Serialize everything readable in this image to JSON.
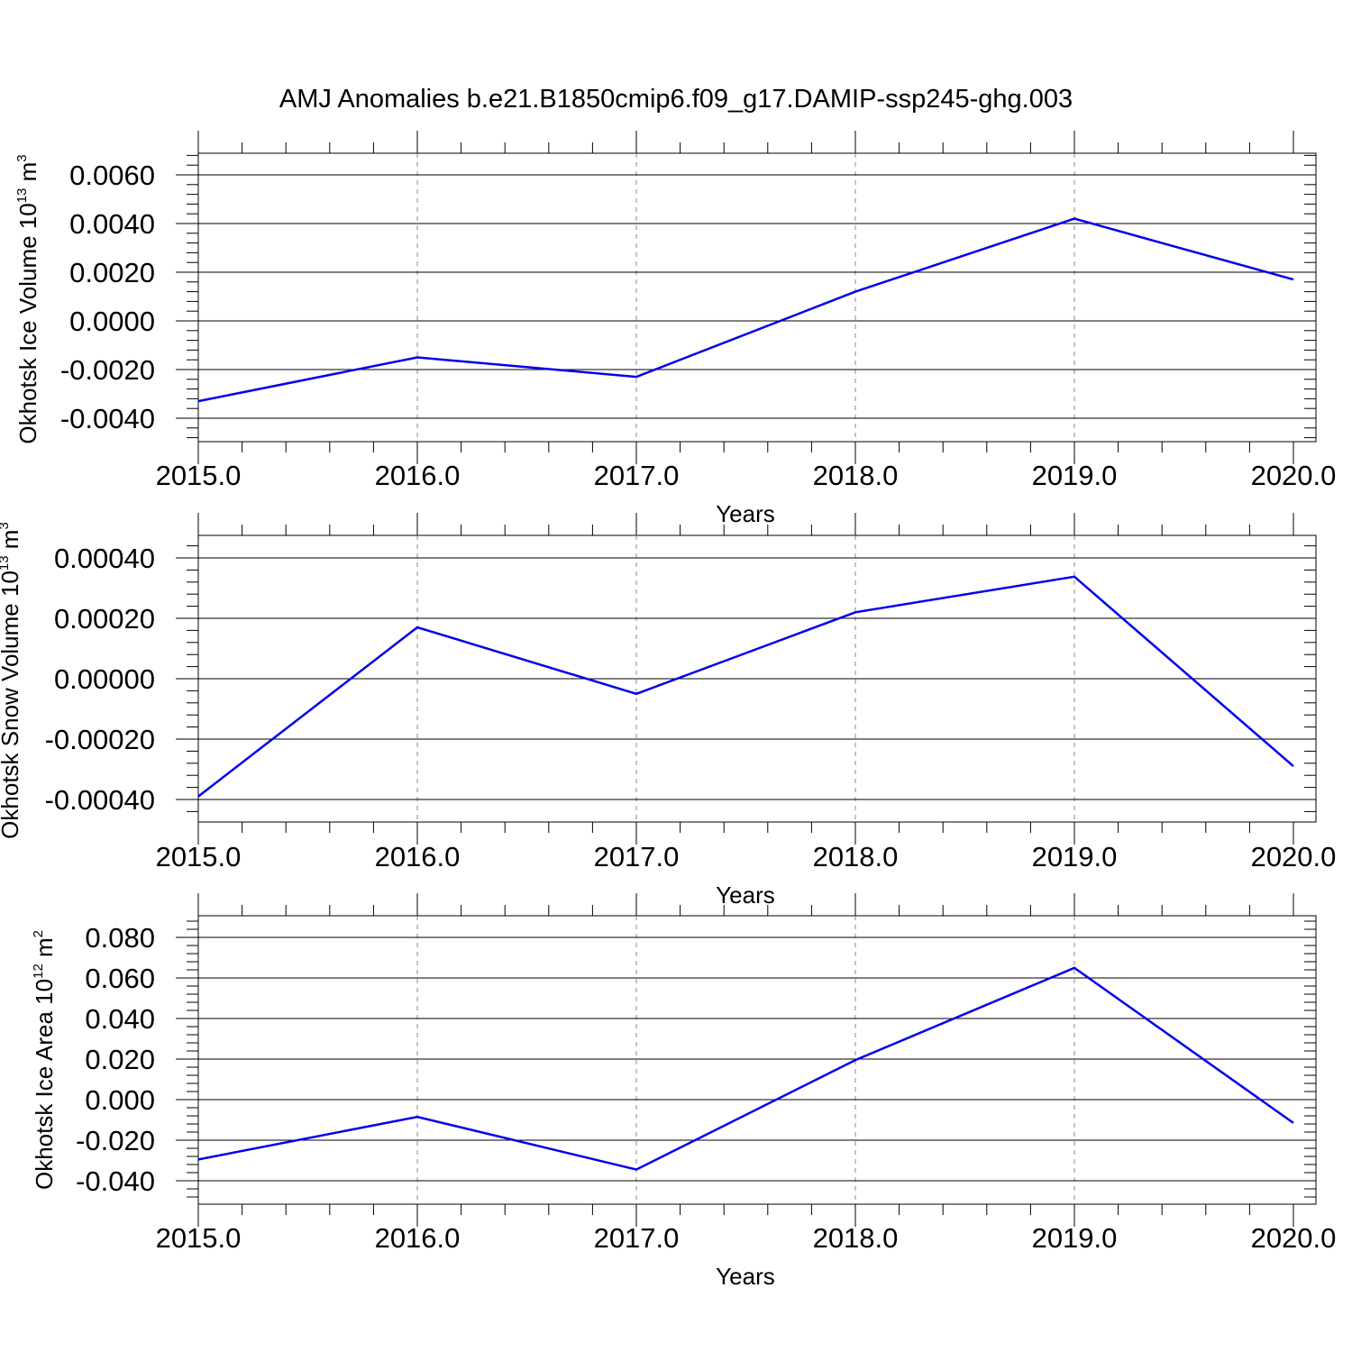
{
  "figure_title": "AMJ Anomalies b.e21.B1850cmip6.f09_g17.DAMIP-ssp245-ghg.003",
  "colors": {
    "line": "#0000ee",
    "axis": "#000000",
    "grid": "#888888"
  },
  "chart_data": [
    {
      "type": "line",
      "title": "AMJ Anomalies b.e21.B1850cmip6.f09_g17.DAMIP-ssp245-ghg.003",
      "xlabel": "Years",
      "ylabel": {
        "text": "Okhotsk Ice Volume 10",
        "exp": "13",
        "unit": " m",
        "unit_exp": "3"
      },
      "x": [
        2015,
        2016,
        2017,
        2018,
        2019,
        2020
      ],
      "xlim": [
        2015,
        2020
      ],
      "x_ticks": [
        "2015.0",
        "2016.0",
        "2017.0",
        "2018.0",
        "2019.0",
        "2020.0"
      ],
      "y": [
        -0.0033,
        -0.0015,
        -0.0023,
        0.0012,
        0.0042,
        0.0017
      ],
      "ylim": [
        -0.004,
        0.006
      ],
      "y_ticks": [
        -0.004,
        -0.002,
        0.0,
        0.002,
        0.004,
        0.006
      ],
      "y_tick_labels": [
        "-0.0040",
        "-0.0020",
        "0.0000",
        "0.0020",
        "0.0040",
        "0.0060"
      ],
      "grid": "vertical dashed at major x ticks"
    },
    {
      "type": "line",
      "xlabel": "Years",
      "ylabel": {
        "text": "Okhotsk Snow Volume 10",
        "exp": "13",
        "unit": " m",
        "unit_exp": "3"
      },
      "x": [
        2015,
        2016,
        2017,
        2018,
        2019,
        2020
      ],
      "xlim": [
        2015,
        2020
      ],
      "x_ticks": [
        "2015.0",
        "2016.0",
        "2017.0",
        "2018.0",
        "2019.0",
        "2020.0"
      ],
      "y": [
        -0.00039,
        0.00017,
        -5e-05,
        0.00022,
        0.000338,
        -0.00029
      ],
      "ylim": [
        -0.0004,
        0.0004
      ],
      "y_ticks": [
        -0.0004,
        -0.0002,
        0.0,
        0.0002,
        0.0004
      ],
      "y_tick_labels": [
        "-0.00040",
        "-0.00020",
        "0.00000",
        "0.00020",
        "0.00040"
      ],
      "grid": "vertical dashed at major x ticks"
    },
    {
      "type": "line",
      "xlabel": "Years",
      "ylabel": {
        "text": "Okhotsk Ice Area 10",
        "exp": "12",
        "unit": " m",
        "unit_exp": "2"
      },
      "x": [
        2015,
        2016,
        2017,
        2018,
        2019,
        2020
      ],
      "xlim": [
        2015,
        2020
      ],
      "x_ticks": [
        "2015.0",
        "2016.0",
        "2017.0",
        "2018.0",
        "2019.0",
        "2020.0"
      ],
      "y": [
        -0.0295,
        -0.0085,
        -0.0345,
        0.0195,
        0.065,
        -0.0115
      ],
      "ylim": [
        -0.04,
        0.08
      ],
      "y_ticks": [
        -0.04,
        -0.02,
        0.0,
        0.02,
        0.04,
        0.06,
        0.08
      ],
      "y_tick_labels": [
        "-0.040",
        "-0.020",
        "0.000",
        "0.020",
        "0.040",
        "0.060",
        "0.080"
      ],
      "grid": "vertical dashed at major x ticks"
    }
  ]
}
